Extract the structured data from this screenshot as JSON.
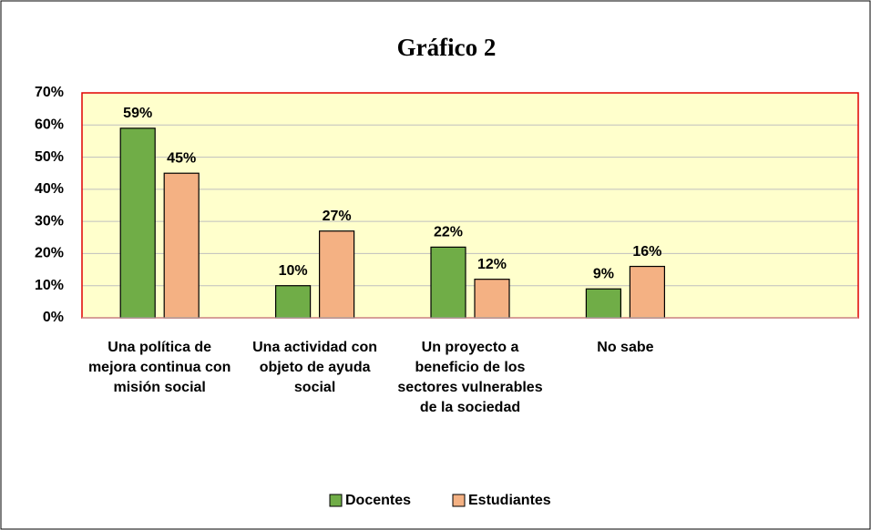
{
  "chart_data": {
    "type": "bar",
    "title": "Gráfico 2",
    "categories": [
      "Una política de mejora continua con misión social",
      "Una actividad con objeto de ayuda social",
      "Un proyecto a beneficio de los sectores vulnerables de la sociedad",
      "No sabe",
      null
    ],
    "series": [
      {
        "name": "Docentes",
        "color": "#70ad47",
        "values": [
          59,
          10,
          22,
          9,
          null
        ],
        "value_labels": [
          "59%",
          "10%",
          "22%",
          "9%",
          null
        ]
      },
      {
        "name": "Estudiantes",
        "color": "#f4b183",
        "values": [
          45,
          27,
          12,
          16,
          null
        ],
        "value_labels": [
          "45%",
          "27%",
          "12%",
          "16%",
          null
        ]
      }
    ],
    "ylim": [
      0,
      70
    ],
    "yticks": [
      {
        "value": 0,
        "label": "0%"
      },
      {
        "value": 10,
        "label": "10%"
      },
      {
        "value": 20,
        "label": "20%"
      },
      {
        "value": 30,
        "label": "30%"
      },
      {
        "value": 40,
        "label": "40%"
      },
      {
        "value": 50,
        "label": "50%"
      },
      {
        "value": 60,
        "label": "60%"
      },
      {
        "value": 70,
        "label": "70%"
      }
    ],
    "grid": true,
    "legend": "bottom"
  }
}
